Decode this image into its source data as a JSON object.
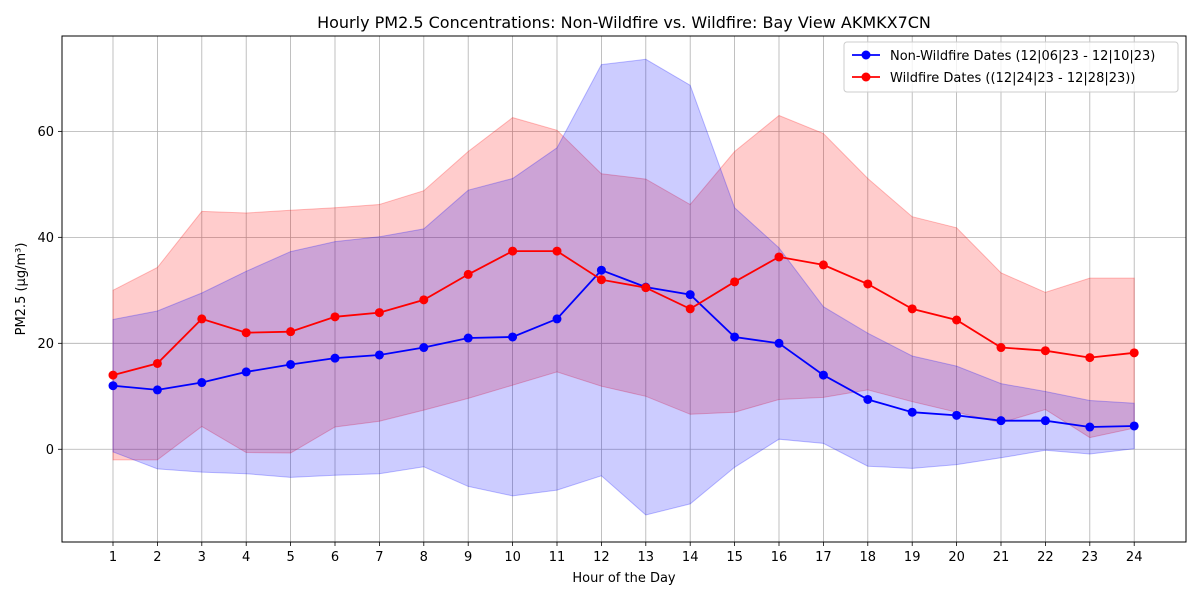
{
  "chart_data": {
    "type": "line",
    "title": "Hourly PM2.5 Concentrations: Non-Wildfire vs. Wildfire: Bay View AKMKX7CN",
    "xlabel": "Hour of the Day",
    "ylabel": "PM2.5 (µg/m³)",
    "categories": [
      "1",
      "2",
      "3",
      "4",
      "5",
      "6",
      "7",
      "8",
      "9",
      "10",
      "11",
      "12",
      "13",
      "14",
      "15",
      "16",
      "17",
      "18",
      "19",
      "20",
      "21",
      "22",
      "23",
      "24"
    ],
    "ylim": [
      -17.5,
      78
    ],
    "yticks": [
      0,
      20,
      40,
      60
    ],
    "grid": true,
    "legend_position": "top-right",
    "series": [
      {
        "name": "Non-Wildfire Dates (12|06|23 - 12|10|23)",
        "color": "#0000ff",
        "band_color": "#0000ff",
        "values": [
          12.0,
          11.2,
          12.6,
          14.6,
          16.0,
          17.2,
          17.8,
          19.2,
          21.0,
          21.2,
          24.6,
          33.8,
          30.6,
          29.2,
          21.2,
          20.0,
          14.0,
          9.4,
          7.0,
          6.4,
          5.4,
          5.4,
          4.2,
          4.4
        ],
        "upper": [
          24.5,
          26.1,
          29.5,
          33.6,
          37.3,
          39.2,
          40.1,
          41.6,
          48.9,
          51.1,
          56.9,
          72.6,
          73.6,
          68.7,
          45.6,
          38.0,
          26.9,
          21.9,
          17.6,
          15.7,
          12.4,
          10.9,
          9.2,
          8.7
        ],
        "lower": [
          -0.5,
          -3.7,
          -4.3,
          -4.6,
          -5.3,
          -4.9,
          -4.6,
          -3.3,
          -7.0,
          -8.8,
          -7.7,
          -5.0,
          -12.4,
          -10.3,
          -3.4,
          1.9,
          1.1,
          -3.2,
          -3.6,
          -2.9,
          -1.6,
          -0.2,
          -0.9,
          0.1
        ]
      },
      {
        "name": "Wildfire Dates ((12|24|23 - 12|28|23))",
        "color": "#ff0000",
        "band_color": "#ff0000",
        "values": [
          14.0,
          16.2,
          24.6,
          22.0,
          22.2,
          25.0,
          25.8,
          28.2,
          33.0,
          37.4,
          37.4,
          32.0,
          30.5,
          26.5,
          31.6,
          36.3,
          34.8,
          31.2,
          26.5,
          24.4,
          19.2,
          18.6,
          17.3,
          18.2
        ],
        "upper": [
          30.0,
          34.3,
          44.9,
          44.6,
          45.1,
          45.6,
          46.2,
          48.8,
          56.2,
          62.6,
          60.2,
          52.0,
          51.0,
          46.2,
          56.2,
          63.0,
          59.6,
          51.1,
          43.9,
          41.8,
          33.3,
          29.6,
          32.3,
          32.3
        ],
        "lower": [
          -2.0,
          -2.0,
          4.3,
          -0.6,
          -0.7,
          4.2,
          5.3,
          7.4,
          9.6,
          12.1,
          14.6,
          11.9,
          10.0,
          6.6,
          7.0,
          9.4,
          9.8,
          11.2,
          9.0,
          7.0,
          5.0,
          7.5,
          2.2,
          4.0
        ]
      }
    ]
  }
}
